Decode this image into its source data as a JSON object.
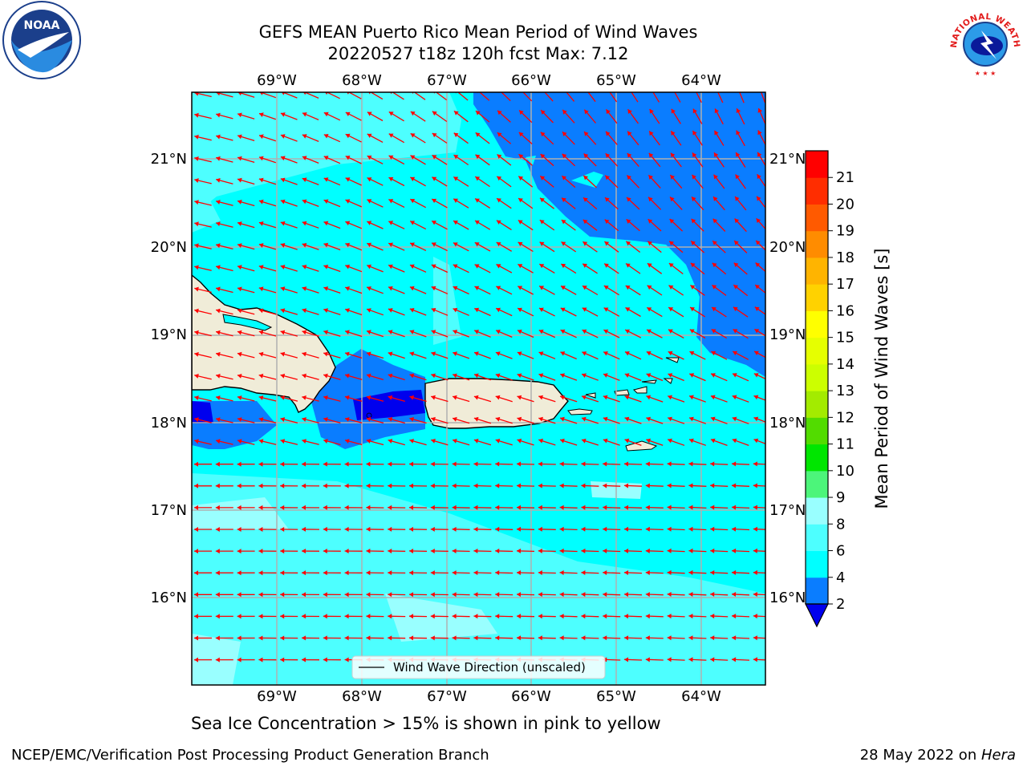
{
  "title": {
    "line1": "GEFS MEAN Puerto Rico Mean Period of Wind Waves",
    "line2": "20220527 t18z 120h fcst   Max: 7.12"
  },
  "map": {
    "lon_labels": [
      "69°W",
      "68°W",
      "67°W",
      "66°W",
      "65°W",
      "64°W"
    ],
    "lat_labels": [
      "21°N",
      "20°N",
      "19°N",
      "18°N",
      "17°N",
      "16°N"
    ],
    "legend_label": "Wind Wave Direction (unscaled)",
    "colors": {
      "sea_main": "#00ffff",
      "sea_light": "#4dffff",
      "sea_lighter": "#99ffff",
      "deep": "#0a7dff",
      "darkest": "#0000ee",
      "land": "#f0ecd8",
      "arrow": "#ff0000",
      "grid": "#b0b0b0"
    }
  },
  "colorbar": {
    "label": "Mean Period of Wind Waves [s]",
    "ticks": [
      "2",
      "4",
      "6",
      "8",
      "9",
      "10",
      "11",
      "12",
      "13",
      "14",
      "15",
      "16",
      "17",
      "18",
      "19",
      "20",
      "21"
    ],
    "colors": [
      "#0a7dff",
      "#00ffff",
      "#4dffff",
      "#99ffff",
      "#4cf57a",
      "#00e600",
      "#52dc00",
      "#a3eb00",
      "#ccff00",
      "#e6ff00",
      "#ffff00",
      "#ffd200",
      "#ffb400",
      "#ff8c00",
      "#ff5a00",
      "#ff2d00",
      "#ff0000"
    ],
    "under_color": "#0000ee"
  },
  "caption": "Sea Ice Concentration > 15% is shown in pink to yellow",
  "footer": {
    "left": "NCEP/EMC/Verification Post Processing Product Generation Branch",
    "right_prefix": "28 May 2022 on ",
    "right_host": "Hera"
  },
  "logos": {
    "noaa_text": "NOAA",
    "nws_text": "NATIONAL WEATHER SERVICE"
  }
}
